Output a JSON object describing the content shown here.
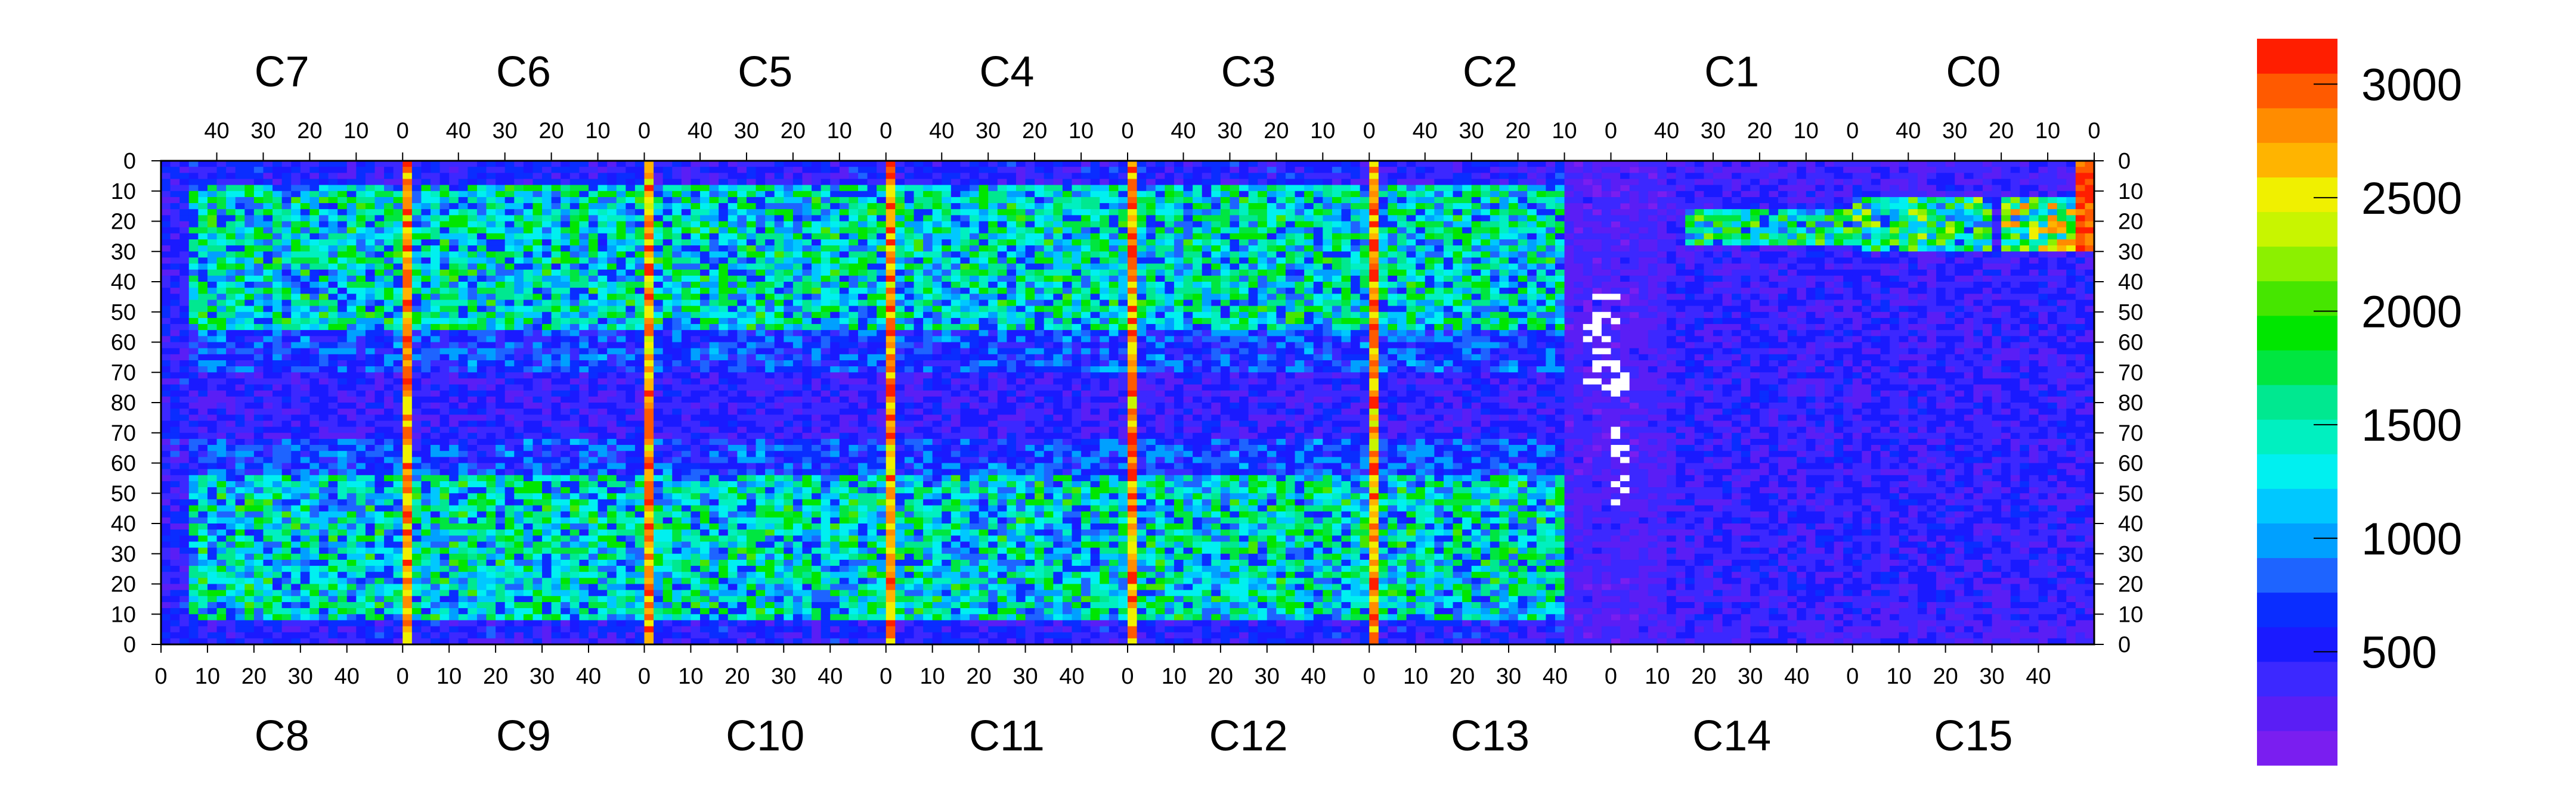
{
  "chart_data": {
    "type": "heatmap",
    "title": "",
    "xlabel": "",
    "ylabel": "",
    "grid": false,
    "chips_top": [
      "C7",
      "C6",
      "C5",
      "C4",
      "C3",
      "C2",
      "C1",
      "C0"
    ],
    "chips_bottom": [
      "C8",
      "C9",
      "C10",
      "C11",
      "C12",
      "C13",
      "C14",
      "C15"
    ],
    "top_ticks": [
      "40",
      "30",
      "20",
      "10",
      "0"
    ],
    "bottom_ticks": [
      "0",
      "10",
      "20",
      "30",
      "40"
    ],
    "y_ticks": [
      "0",
      "10",
      "20",
      "30",
      "40",
      "50",
      "60",
      "70",
      "80",
      "70",
      "60",
      "50",
      "40",
      "30",
      "20",
      "10",
      "0"
    ],
    "columns_per_chip": 52,
    "rows_per_half": 80,
    "colorbar": {
      "min": 0,
      "max": 3200,
      "ticks": [
        500,
        1000,
        1500,
        2000,
        2500,
        3000
      ],
      "tick_labels": [
        "500",
        "1000",
        "1500",
        "2000",
        "2500",
        "3000"
      ],
      "colors": [
        "#7a1ef0",
        "#5a1ef5",
        "#3c28ff",
        "#1a1aff",
        "#0a2dff",
        "#1e64ff",
        "#00a0ff",
        "#00c8ff",
        "#00f0f0",
        "#00f0c0",
        "#00e890",
        "#00e640",
        "#00e600",
        "#46e600",
        "#8cf000",
        "#c8f500",
        "#f0f000",
        "#ffb400",
        "#ff8c00",
        "#ff5a00",
        "#ff1e00"
      ]
    },
    "summary": {
      "dead_pixels_region": "C13 / C14 boundary, rows 40-60 around the middle",
      "hot_column_chips": [
        "C9",
        "C10",
        "C11",
        "C12",
        "C13"
      ],
      "low_occupancy_chips": [
        "C13",
        "C14",
        "C15",
        "C2",
        "C1",
        "C0"
      ]
    }
  }
}
